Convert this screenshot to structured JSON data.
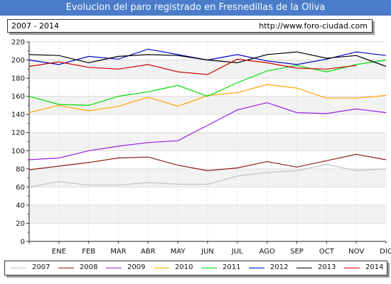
{
  "header": {
    "title": "Evolucion del paro registrado en Fresnedillas de la Oliva",
    "period": "2007 - 2014",
    "url": "http://www.foro-ciudad.com"
  },
  "chart_data": {
    "type": "line",
    "title": "Evolucion del paro registrado en Fresnedillas de la Oliva",
    "categories": [
      "",
      "ENE",
      "FEB",
      "MAR",
      "ABR",
      "MAY",
      "JUN",
      "JUL",
      "AGO",
      "SEP",
      "OCT",
      "NOV",
      "DIC"
    ],
    "ylim": [
      0,
      220
    ],
    "yticks": [
      0,
      20,
      40,
      60,
      80,
      100,
      120,
      140,
      160,
      180,
      200,
      220
    ],
    "grid": true,
    "legend_position": "bottom",
    "series": [
      {
        "name": "2007",
        "color": "#c0c0c0",
        "values": [
          60,
          66,
          62,
          62,
          65,
          63,
          63,
          72,
          76,
          78,
          85,
          78,
          80
        ]
      },
      {
        "name": "2008",
        "color": "#8b1a1a",
        "values": [
          79,
          83,
          87,
          92,
          93,
          84,
          78,
          81,
          88,
          82,
          89,
          96,
          90
        ]
      },
      {
        "name": "2009",
        "color": "#9a1fe0",
        "values": [
          90,
          92,
          100,
          105,
          109,
          111,
          128,
          145,
          153,
          142,
          141,
          146,
          142
        ]
      },
      {
        "name": "2010",
        "color": "#ffa500",
        "values": [
          142,
          150,
          144,
          149,
          159,
          149,
          161,
          164,
          173,
          169,
          158,
          158,
          161
        ]
      },
      {
        "name": "2011",
        "color": "#00dd00",
        "values": [
          160,
          151,
          150,
          160,
          165,
          172,
          160,
          175,
          188,
          194,
          187,
          195,
          200
        ]
      },
      {
        "name": "2012",
        "color": "#0000cc",
        "values": [
          200,
          195,
          204,
          201,
          212,
          206,
          200,
          206,
          199,
          195,
          201,
          209,
          205
        ]
      },
      {
        "name": "2013",
        "color": "#000000",
        "values": [
          206,
          205,
          197,
          204,
          206,
          205,
          200,
          197,
          206,
          209,
          202,
          205,
          193
        ]
      },
      {
        "name": "2014",
        "color": "#cc0000",
        "values": [
          193,
          198,
          192,
          190,
          195,
          187,
          184,
          201,
          197,
          191,
          190,
          194,
          null
        ]
      }
    ]
  }
}
